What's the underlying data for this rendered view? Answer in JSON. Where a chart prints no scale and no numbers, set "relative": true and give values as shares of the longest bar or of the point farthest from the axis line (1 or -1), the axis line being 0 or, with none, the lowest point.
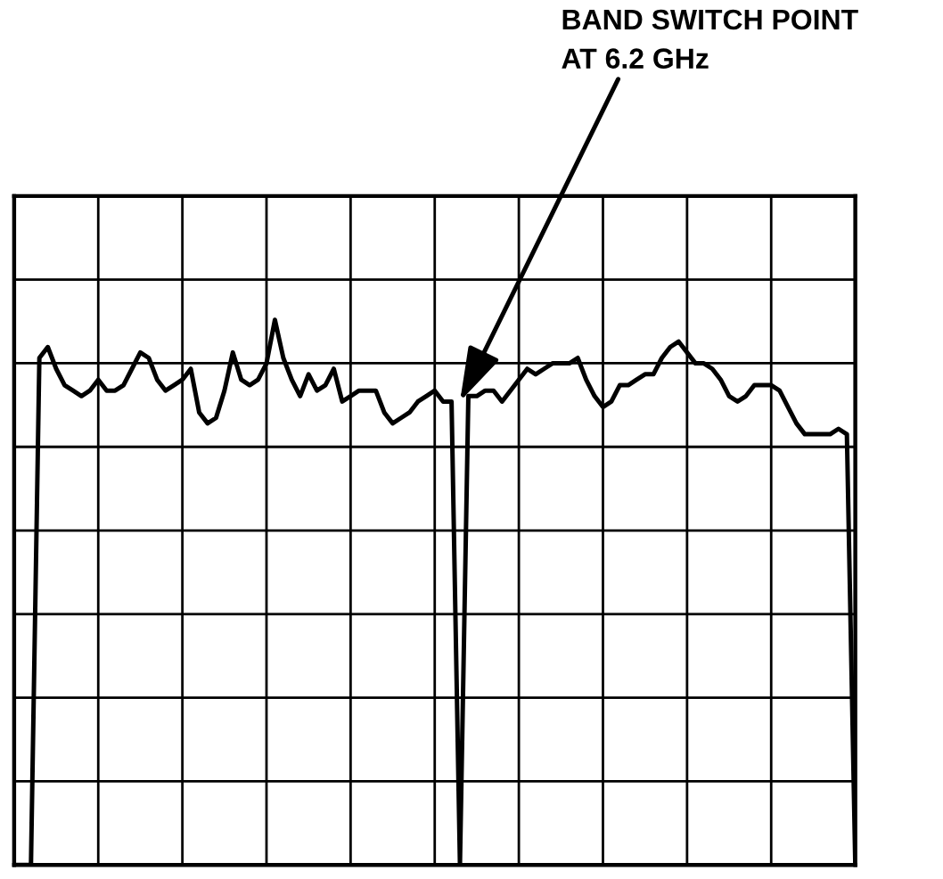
{
  "chart_data": {
    "type": "line",
    "relative": true,
    "grid": true,
    "annotations": [
      "BAND SWITCH POINT\nAT 6.2 GHz"
    ],
    "categories": [
      null,
      null,
      null,
      null,
      null,
      null,
      null,
      null,
      null,
      null,
      null,
      null,
      null,
      null,
      null,
      null,
      null,
      null,
      null,
      null,
      null,
      null,
      null,
      null,
      null,
      null,
      null,
      null,
      null,
      null,
      null,
      null,
      null,
      null,
      null,
      null,
      null,
      null,
      null,
      null,
      null,
      null,
      null,
      null,
      null,
      null,
      null,
      null,
      null,
      null,
      null,
      null,
      null,
      null,
      null,
      null,
      null,
      null,
      null,
      null,
      null,
      null,
      null,
      null,
      null,
      null,
      null,
      null,
      null,
      null,
      null,
      null,
      null,
      null,
      null,
      null,
      null,
      null,
      null,
      null,
      null,
      null,
      null,
      null,
      null,
      null,
      null,
      null,
      null,
      null,
      null,
      null,
      null,
      null,
      null,
      null,
      null,
      null,
      null,
      null,
      null
    ],
    "series": [
      {
        "color": "#000000",
        "values": [
          0,
          0,
          0,
          0.93,
          0.95,
          0.91,
          0.88,
          0.87,
          0.86,
          0.87,
          0.89,
          0.87,
          0.87,
          0.88,
          0.91,
          0.94,
          0.93,
          0.89,
          0.87,
          0.88,
          0.89,
          0.91,
          0.83,
          0.81,
          0.82,
          0.87,
          0.94,
          0.89,
          0.88,
          0.89,
          0.92,
          1,
          0.93,
          0.89,
          0.86,
          0.9,
          0.87,
          0.88,
          0.91,
          0.85,
          0.86,
          0.87,
          0.87,
          0.87,
          0.83,
          0.81,
          0.82,
          0.83,
          0.85,
          0.86,
          0.87,
          0.85,
          0.85,
          0,
          0.86,
          0.86,
          0.87,
          0.87,
          0.85,
          0.87,
          0.89,
          0.91,
          0.9,
          0.91,
          0.92,
          0.92,
          0.92,
          0.93,
          0.89,
          0.86,
          0.84,
          0.85,
          0.88,
          0.88,
          0.89,
          0.9,
          0.9,
          0.93,
          0.95,
          0.96,
          0.94,
          0.92,
          0.92,
          0.91,
          0.89,
          0.86,
          0.85,
          0.86,
          0.88,
          0.88,
          0.88,
          0.87,
          0.84,
          0.81,
          0.79,
          0.79,
          0.79,
          0.79,
          0.8,
          0.79,
          0
        ]
      }
    ]
  }
}
